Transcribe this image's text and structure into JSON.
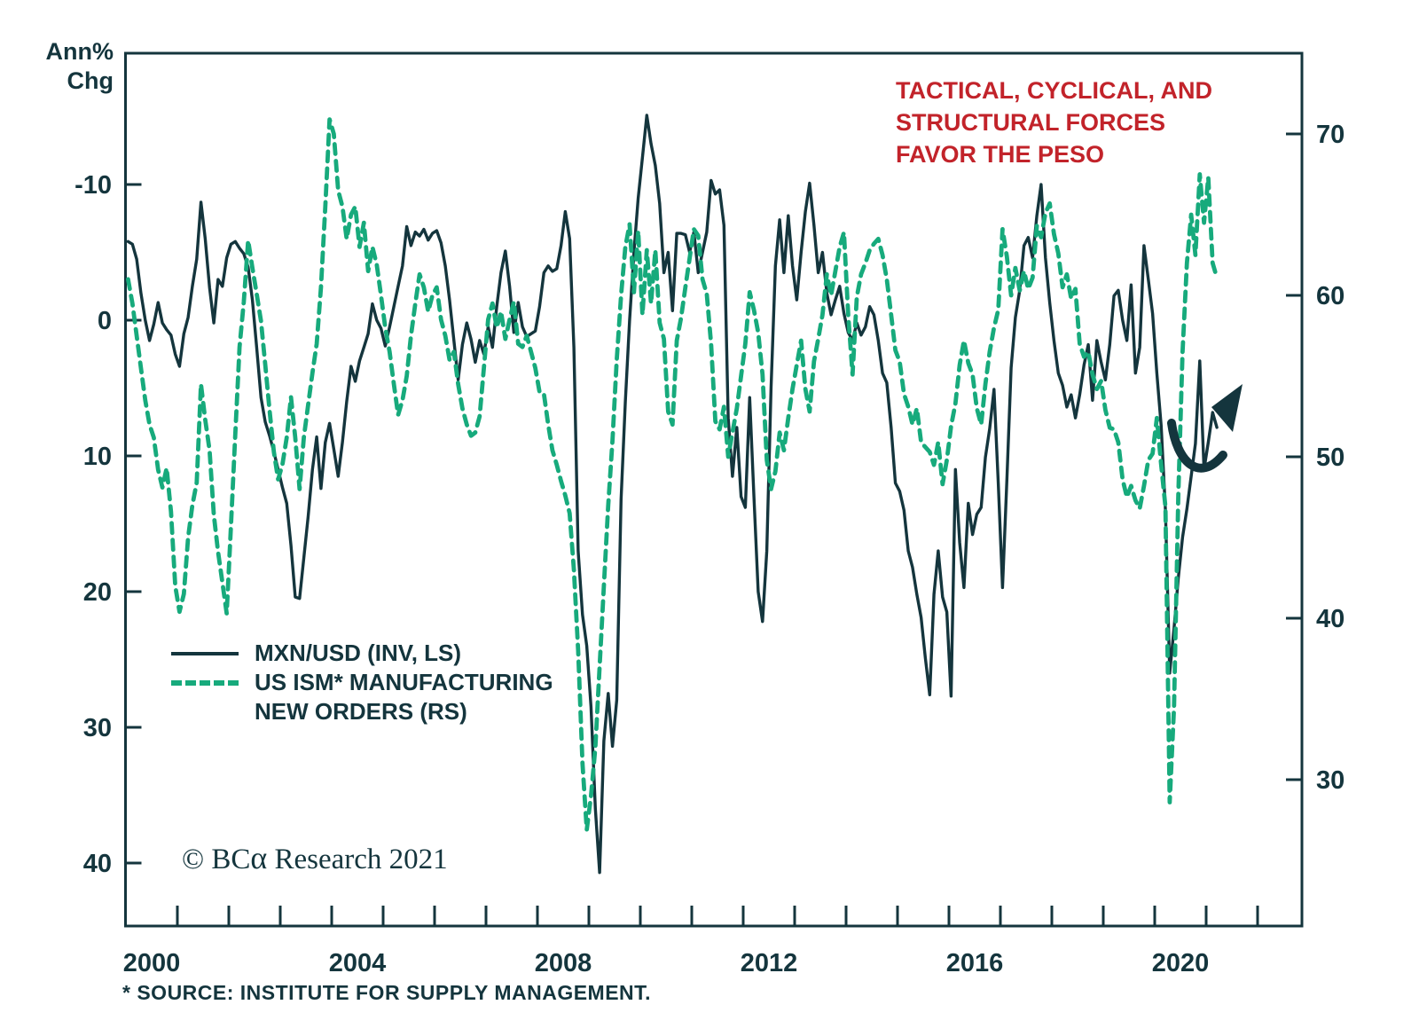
{
  "y_axis_unit": {
    "line1": "Ann%",
    "line2": "Chg"
  },
  "annotation": {
    "lines": [
      "TACTICAL, CYCLICAL, AND",
      "STRUCTURAL FORCES",
      "FAVOR THE PESO"
    ],
    "color": "#c2232a"
  },
  "legend": {
    "items": [
      {
        "label_lines": [
          "MXN/USD (INV, LS)"
        ],
        "style": "solid",
        "color": "#14353d"
      },
      {
        "label_lines": [
          "US ISM* MANUFACTURING",
          "NEW ORDERS (RS)"
        ],
        "style": "dashed",
        "color": "#17aa7c"
      }
    ]
  },
  "copyright": {
    "symbol": "© ",
    "brand_prefix": "BC",
    "brand_alpha": "α",
    "suffix": " Research 2021"
  },
  "footnote": "* SOURCE: INSTITUTE FOR SUPPLY MANAGEMENT.",
  "chart_data": {
    "type": "line",
    "title": "",
    "left_axis": {
      "unit": "Ann% Chg",
      "ticks": [
        -10,
        0,
        10,
        20,
        30,
        40
      ],
      "inverted": true,
      "range": [
        -17,
        45
      ]
    },
    "right_axis": {
      "ticks": [
        70,
        60,
        50,
        40,
        30
      ],
      "range": [
        22,
        73
      ]
    },
    "x_axis": {
      "tick_years": [
        2001,
        2002,
        2003,
        2004,
        2005,
        2006,
        2007,
        2008,
        2009,
        2010,
        2011,
        2012,
        2013,
        2014,
        2015,
        2016,
        2017,
        2018,
        2019,
        2020,
        2021,
        2022
      ],
      "year_labels": [
        2000,
        2004,
        2008,
        2012,
        2016,
        2020
      ],
      "range": [
        2000,
        2022.8
      ],
      "grid": false
    },
    "series": [
      {
        "name": "MXN/USD (INV, LS)",
        "axis": "left",
        "style": "solid",
        "color": "#14353d",
        "start_year": 2000,
        "points_per_year": 12,
        "values": [
          -5.8,
          -5.6,
          -4.5,
          -2.0,
          0.0,
          1.5,
          0.3,
          -1.3,
          0.2,
          0.7,
          1.1,
          2.5,
          3.4,
          1.0,
          -0.2,
          -2.5,
          -4.5,
          -8.7,
          -6.0,
          -2.4,
          0.2,
          -3.0,
          -2.5,
          -4.6,
          -5.6,
          -5.8,
          -5.3,
          -4.9,
          -3.9,
          -1.5,
          2.0,
          5.7,
          7.5,
          8.5,
          9.7,
          11.0,
          12.3,
          13.5,
          16.6,
          20.4,
          20.5,
          17.5,
          14.5,
          11.0,
          8.6,
          12.4,
          9.0,
          7.6,
          9.5,
          11.5,
          9.0,
          6.0,
          3.4,
          4.5,
          3.0,
          2.0,
          1.0,
          -1.2,
          0.0,
          0.6,
          1.9,
          0.5,
          -1.0,
          -2.5,
          -4.0,
          -6.9,
          -5.5,
          -6.5,
          -6.2,
          -6.7,
          -5.9,
          -6.4,
          -6.6,
          -5.7,
          -4.0,
          -1.5,
          1.5,
          4.4,
          1.8,
          0.2,
          1.4,
          3.1,
          1.5,
          2.5,
          0.5,
          2.0,
          -1.0,
          -3.5,
          -5.1,
          -2.5,
          0.9,
          -1.3,
          0.5,
          1.2,
          1.0,
          0.8,
          -1.0,
          -3.5,
          -4.0,
          -3.6,
          -3.8,
          -5.5,
          -8.0,
          -6.0,
          2.0,
          17.0,
          21.7,
          24.0,
          28.5,
          36.0,
          40.7,
          31.0,
          27.5,
          31.4,
          28.0,
          13.2,
          6.0,
          0.0,
          -5.0,
          -9.0,
          -12.0,
          -15.1,
          -13.0,
          -11.4,
          -8.6,
          -3.5,
          -5.0,
          -0.7,
          -6.4,
          -6.4,
          -6.3,
          -5.0,
          -6.5,
          -3.5,
          -5.0,
          -6.5,
          -10.3,
          -9.3,
          -9.6,
          -7.0,
          7.2,
          11.5,
          7.9,
          13.0,
          13.8,
          5.7,
          13.0,
          20.0,
          22.2,
          17.0,
          5.0,
          -4.0,
          -7.4,
          -3.5,
          -7.7,
          -4.0,
          -1.5,
          -5.0,
          -8.0,
          -10.1,
          -7.0,
          -3.5,
          -5.0,
          -2.0,
          -0.4,
          -1.5,
          -2.5,
          -0.5,
          0.9,
          1.5,
          0.2,
          1.1,
          0.5,
          -1.0,
          -0.4,
          1.5,
          3.9,
          4.6,
          7.9,
          12.0,
          12.6,
          14.0,
          17.0,
          18.2,
          20.2,
          21.9,
          24.9,
          27.6,
          20.2,
          17.0,
          20.4,
          21.5,
          27.7,
          11.0,
          16.4,
          19.7,
          13.5,
          15.8,
          14.3,
          13.8,
          10.1,
          8.0,
          5.1,
          12.0,
          19.7,
          11.8,
          3.5,
          -0.2,
          -2.2,
          -5.5,
          -6.1,
          -4.6,
          -7.7,
          -10.0,
          -4.6,
          -1.3,
          1.5,
          3.9,
          4.8,
          6.4,
          5.5,
          7.2,
          5.5,
          3.3,
          1.8,
          5.9,
          1.5,
          3.1,
          4.4,
          1.8,
          -1.8,
          -2.2,
          0.0,
          1.5,
          -2.6,
          3.9,
          2.0,
          -5.5,
          -3.0,
          -0.5,
          3.9,
          7.8,
          14.0,
          26.0,
          22.7,
          19.0,
          16.0,
          13.9,
          11.5,
          9.1,
          3.0,
          11.0,
          9.0,
          6.8,
          7.9
        ]
      },
      {
        "name": "US ISM* MANUFACTURING NEW ORDERS (RS)",
        "axis": "right",
        "style": "dashed",
        "color": "#17aa7c",
        "start_year": 2000,
        "points_per_year": 12,
        "values": [
          61.0,
          59.5,
          57.5,
          55.5,
          53.5,
          52.0,
          51.2,
          49.2,
          48.1,
          49.3,
          46.6,
          42.0,
          40.4,
          41.5,
          45.0,
          47.0,
          48.4,
          54.5,
          52.3,
          50.4,
          46.4,
          44.1,
          42.2,
          40.3,
          45.7,
          51.4,
          56.8,
          59.6,
          63.4,
          61.7,
          60.1,
          58.4,
          55.7,
          52.9,
          50.3,
          48.6,
          49.5,
          51.2,
          53.7,
          51.2,
          48.0,
          51.2,
          53.2,
          55.2,
          57.0,
          60.5,
          65.5,
          70.9,
          70.0,
          66.5,
          65.5,
          63.5,
          65.0,
          65.5,
          63.0,
          64.5,
          61.5,
          63.0,
          61.9,
          60.0,
          58.0,
          56.5,
          54.5,
          52.6,
          53.5,
          55.0,
          57.5,
          59.5,
          61.3,
          60.5,
          59.0,
          60.0,
          60.5,
          58.5,
          57.5,
          56.0,
          56.5,
          54.5,
          53.0,
          52.0,
          51.3,
          51.5,
          52.5,
          55.5,
          58.5,
          59.5,
          58.0,
          59.0,
          57.3,
          58.5,
          59.6,
          57.0,
          56.8,
          57.5,
          56.5,
          55.5,
          54.0,
          53.9,
          52.0,
          50.4,
          49.5,
          48.5,
          47.6,
          46.5,
          43.0,
          38.0,
          31.0,
          26.9,
          29.0,
          32.0,
          37.0,
          42.0,
          47.0,
          51.0,
          56.0,
          60.0,
          63.0,
          64.4,
          60.2,
          64.0,
          58.8,
          62.8,
          59.5,
          62.8,
          58.3,
          57.3,
          52.8,
          52.0,
          57.2,
          58.6,
          60.5,
          62.3,
          64.1,
          63.7,
          61.0,
          60.1,
          57.0,
          52.2,
          51.7,
          53.1,
          50.0,
          51.5,
          53.0,
          55.0,
          57.0,
          60.2,
          59.1,
          57.7,
          55.1,
          49.8,
          48.0,
          49.1,
          51.5,
          50.4,
          52.4,
          54.2,
          55.7,
          57.2,
          54.2,
          52.8,
          55.9,
          57.3,
          58.8,
          61.3,
          60.0,
          61.5,
          63.0,
          63.9,
          58.8,
          55.1,
          59.9,
          61.3,
          62.0,
          62.8,
          63.2,
          63.5,
          62.5,
          61.0,
          58.8,
          56.6,
          55.9,
          53.9,
          53.1,
          52.0,
          53.0,
          50.9,
          50.6,
          50.3,
          49.5,
          50.9,
          48.3,
          49.8,
          51.9,
          53.3,
          55.7,
          57.2,
          55.8,
          55.1,
          53.0,
          52.0,
          54.5,
          56.5,
          58.0,
          59.1,
          64.1,
          62.4,
          60.0,
          61.7,
          60.3,
          61.5,
          60.4,
          61.1,
          64.3,
          63.6,
          65.1,
          65.7,
          63.8,
          62.6,
          60.5,
          61.3,
          59.8,
          60.4,
          57.0,
          56.2,
          56.5,
          55.1,
          54.2,
          54.7,
          52.9,
          51.8,
          51.7,
          50.9,
          48.6,
          47.5,
          48.2,
          47.3,
          46.8,
          48.2,
          49.8,
          50.2,
          52.4,
          49.5,
          46.9,
          28.6,
          34.5,
          47.6,
          56.5,
          62.0,
          65.0,
          62.5,
          67.5,
          64.5,
          67.3,
          62.0,
          61.1
        ]
      }
    ]
  }
}
